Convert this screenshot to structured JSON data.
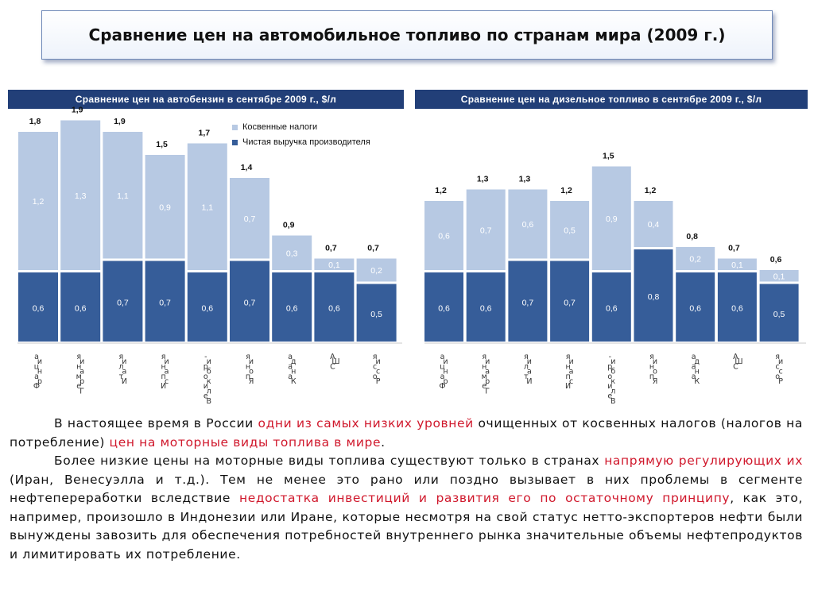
{
  "slide_title": "Сравнение цен на автомобильное топливо по странам мира (2009 г.)",
  "colors": {
    "header_bg": "#223f78",
    "indirect_taxes": "#b7c9e3",
    "net_revenue": "#365d99",
    "highlight": "#d0182c"
  },
  "chart_data": [
    {
      "type": "bar",
      "stacked": true,
      "title": "Сравнение цен на автобензин в сентябре 2009 г., $/л",
      "categories": [
        "Франция",
        "Германия",
        "Италия",
        "Испания",
        "Великобритания",
        "Япония",
        "Канада",
        "США",
        "Россия"
      ],
      "category_labels": [
        "а\nи\nц\nн\nа\nр\nФ",
        "я\nи\nн\nа\nм\nр\nе\nГ",
        "я\nи\nл\nа\nт\nИ",
        "я\nи\nн\nа\nп\nс\nИ",
        "-\nи\nр\nб\nо\nк\nи\nл\nе\nВ\n \nя\nи\nн\nа\nт",
        "я\nи\nн\nо\nп\nЯ",
        "а\nд\nа\nн\nа\nК",
        "А\nШ\nС",
        "я\nи\nс\nс\nо\nР"
      ],
      "series": [
        {
          "name": "Чистая выручка производителя",
          "values": [
            "0,6",
            "0,6",
            "0,7",
            "0,7",
            "0,6",
            "0,7",
            "0,6",
            "0,6",
            "0,5"
          ]
        },
        {
          "name": "Косвенные налоги",
          "values": [
            "1,2",
            "1,3",
            "1,1",
            "0,9",
            "1,1",
            "0,7",
            "0,3",
            "0,1",
            "0,2"
          ]
        }
      ],
      "totals": [
        "1,8",
        "1,9",
        "1,9",
        "1,5",
        "1,7",
        "1,4",
        "0,9",
        "0,7",
        "0,7"
      ],
      "legend": [
        "Косвенные налоги",
        "Чистая выручка производителя"
      ],
      "legend_position": "top-right"
    },
    {
      "type": "bar",
      "stacked": true,
      "title": "Сравнение цен на дизельное топливо в сентябре 2009 г., $/л",
      "categories": [
        "Франция",
        "Германия",
        "Италия",
        "Испания",
        "Великобритания",
        "Япония",
        "Канада",
        "США",
        "Россия"
      ],
      "category_labels": [
        "а\nи\nц\nн\nа\nр\nФ",
        "я\nи\nн\nа\nм\nр\nе\nГ",
        "я\nи\nл\nа\nт\nИ",
        "я\nи\nн\nа\nп\nс\nИ",
        "-\nи\nр\nб\nо\nк\nи\nл\nе\nВ\n \nя\nи\nн\nа\nт",
        "я\nи\nн\nо\nп\nЯ",
        "а\nд\nа\nн\nа\nК",
        "А\nШ\nС",
        "я\nи\nс\nс\nо\nР"
      ],
      "series": [
        {
          "name": "Чистая выручка производителя",
          "values": [
            "0,6",
            "0,6",
            "0,7",
            "0,7",
            "0,6",
            "0,8",
            "0,6",
            "0,6",
            "0,5"
          ]
        },
        {
          "name": "Косвенные налоги",
          "values": [
            "0,6",
            "0,7",
            "0,6",
            "0,5",
            "0,9",
            "0,4",
            "0,2",
            "0,1",
            "0,1"
          ]
        }
      ],
      "totals": [
        "1,2",
        "1,3",
        "1,3",
        "1,2",
        "1,5",
        "1,2",
        "0,8",
        "0,7",
        "0,6"
      ]
    }
  ],
  "body": {
    "p1": [
      {
        "t": "В настоящее время в России ",
        "hl": false
      },
      {
        "t": "одни из самых низких уровней",
        "hl": true
      },
      {
        "t": " очищенных от косвенных налогов (налогов на потребление) ",
        "hl": false
      },
      {
        "t": "цен на моторные виды топлива в мире",
        "hl": true
      },
      {
        "t": ".",
        "hl": false
      }
    ],
    "p2": [
      {
        "t": "Более низкие цены на моторные виды топлива существуют только в странах ",
        "hl": false
      },
      {
        "t": "напрямую регулирующих их",
        "hl": true
      },
      {
        "t": " (Иран, Венесуэлла и т.д.). Тем не менее это рано или поздно вызывает в них проблемы в сегменте нефтепереработки вследствие ",
        "hl": false
      },
      {
        "t": "недостатка инвестиций и развития его по остаточному принципу",
        "hl": true
      },
      {
        "t": ", как это, например, произошло в Индонезии или Иране, которые несмотря на свой статус нетто-экспортеров нефти были вынуждены завозить для обеспечения потребностей внутреннего рынка значительные объемы нефтепродуктов и лимитировать их потребление.",
        "hl": false
      }
    ]
  }
}
